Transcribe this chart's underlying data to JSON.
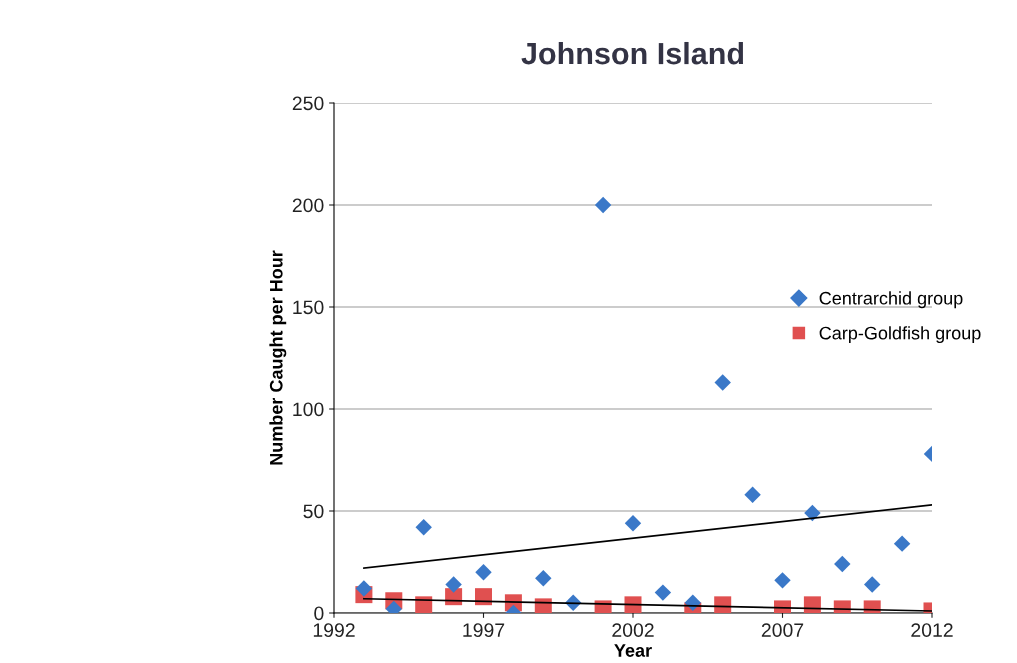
{
  "chart_data": {
    "type": "scatter",
    "title": "Johnson Island",
    "xlabel": "Year",
    "ylabel": "Number Caught per Hour",
    "xlim": [
      1992,
      2012
    ],
    "xticks": [
      1992,
      1997,
      2002,
      2007,
      2012
    ],
    "ylim": [
      0,
      250
    ],
    "yticks": [
      0,
      50,
      100,
      150,
      200,
      250
    ],
    "grid": "y",
    "legend": "right",
    "series": [
      {
        "name": "Centrarchid group",
        "color": "#3a78c8",
        "marker": "diamond",
        "x": [
          1993,
          1994,
          1995,
          1996,
          1997,
          1998,
          1999,
          2000,
          2001,
          2002,
          2003,
          2004,
          2005,
          2006,
          2007,
          2008,
          2009,
          2010,
          2011,
          2012
        ],
        "values": [
          12,
          2,
          42,
          14,
          20,
          0,
          17,
          5,
          200,
          44,
          10,
          5,
          113,
          58,
          16,
          49,
          24,
          14,
          34,
          78
        ]
      },
      {
        "name": "Carp-Goldfish group",
        "color": "#e05050",
        "marker": "square",
        "x": [
          1993,
          1994,
          1995,
          1996,
          1997,
          1998,
          1999,
          2001,
          2002,
          2004,
          2005,
          2007,
          2008,
          2009,
          2010,
          2012
        ],
        "values": [
          9,
          6,
          4,
          8,
          8,
          5,
          3,
          2,
          4,
          1,
          4,
          2,
          4,
          2,
          2,
          1
        ]
      },
      {
        "type": "line",
        "color": "#000000",
        "x": [
          1993,
          2012
        ],
        "values": [
          22,
          53
        ]
      },
      {
        "type": "line",
        "color": "#000000",
        "x": [
          1993,
          2012
        ],
        "values": [
          7,
          1
        ]
      }
    ]
  }
}
